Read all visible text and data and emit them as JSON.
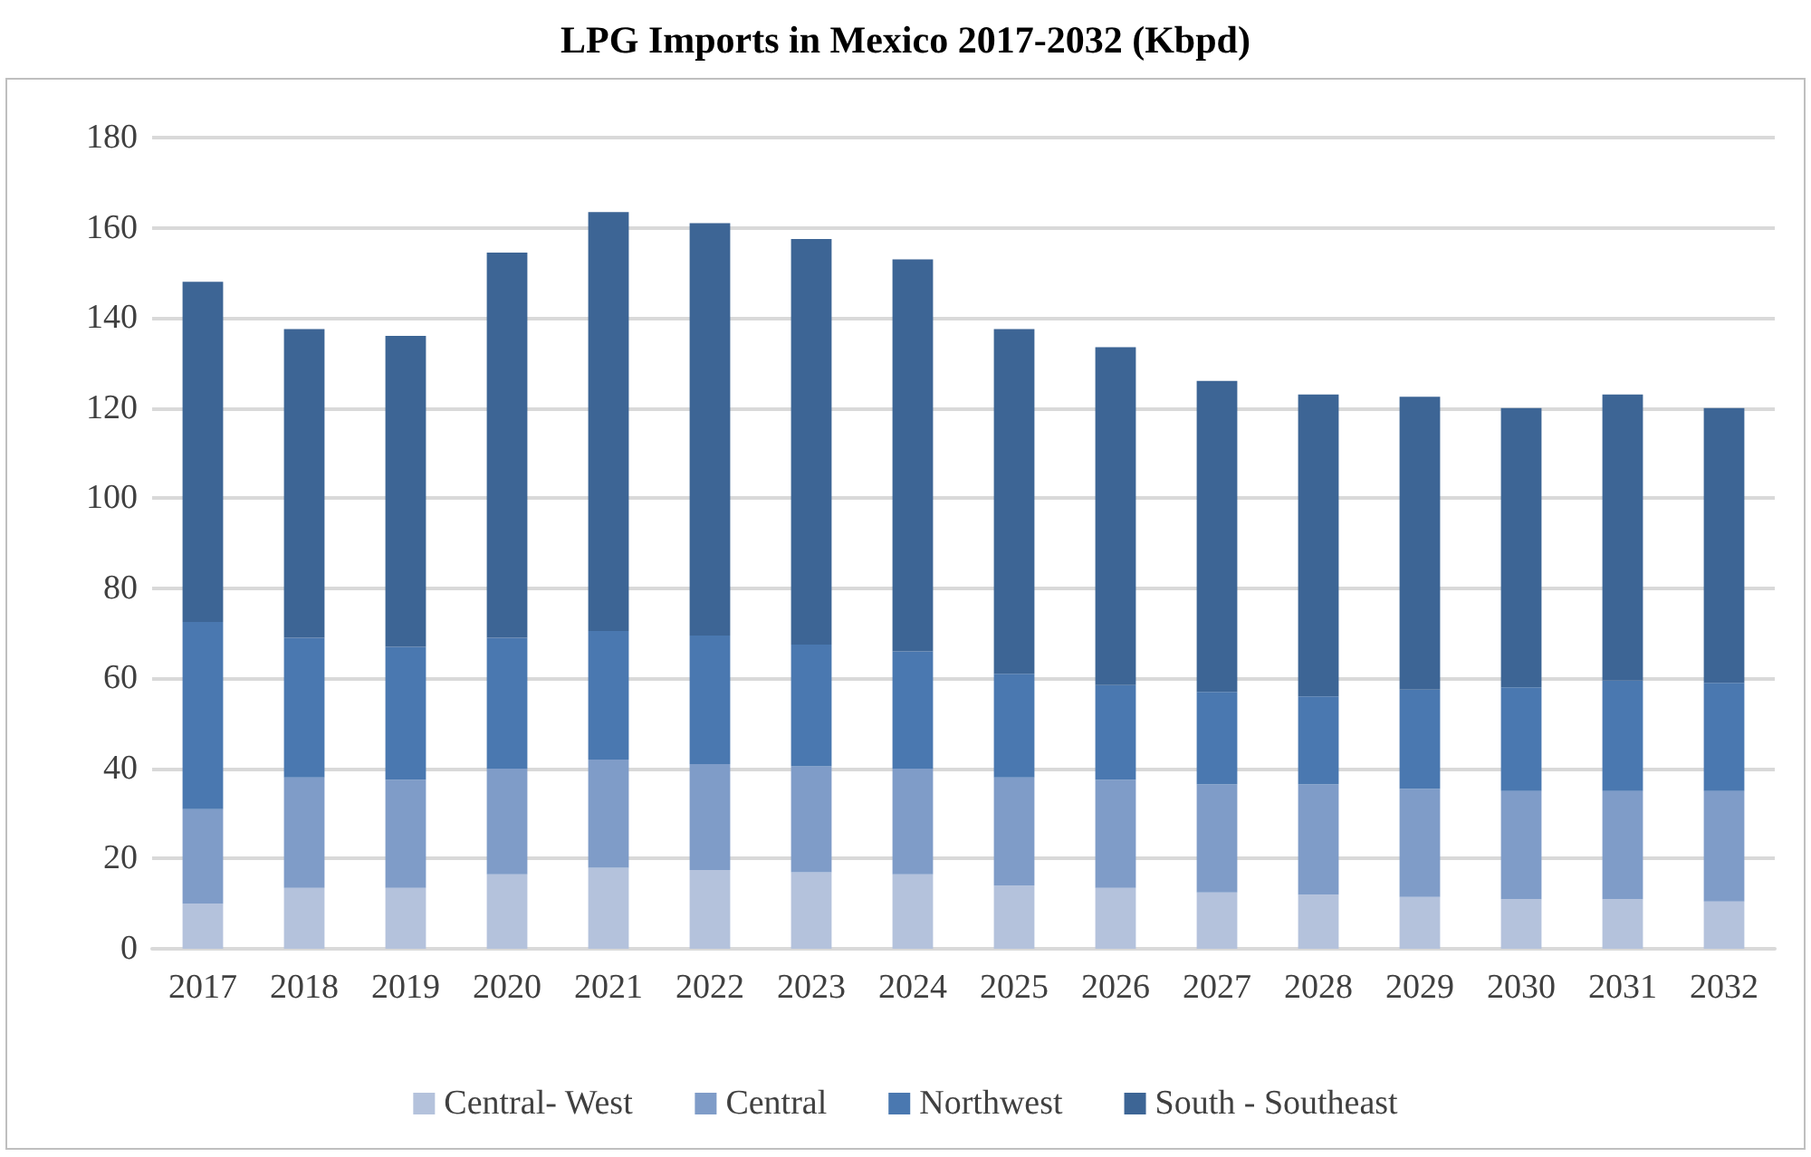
{
  "chart_data": {
    "type": "bar",
    "title": "LPG Imports in Mexico 2017-2032 (Kbpd)",
    "stacked": true,
    "categories": [
      "2017",
      "2018",
      "2019",
      "2020",
      "2021",
      "2022",
      "2023",
      "2024",
      "2025",
      "2026",
      "2027",
      "2028",
      "2029",
      "2030",
      "2031",
      "2032"
    ],
    "series": [
      {
        "name": "Central- West",
        "color": "#b4c2dc",
        "values": [
          10,
          13.5,
          13.5,
          16.5,
          18,
          17.5,
          17,
          16.5,
          14,
          13.5,
          12.5,
          12,
          11.5,
          11,
          11,
          10.5
        ]
      },
      {
        "name": "Central",
        "color": "#7f9cc8",
        "values": [
          21,
          24.5,
          24,
          23.5,
          24,
          23.5,
          23.5,
          23.5,
          24,
          24,
          24,
          24.5,
          24,
          24,
          24,
          24.5
        ]
      },
      {
        "name": "Northwest",
        "color": "#4a78b0",
        "values": [
          41.5,
          31,
          29.5,
          29,
          28.5,
          28.5,
          27,
          26,
          23,
          21,
          20.5,
          19.5,
          22,
          23,
          24.5,
          24
        ]
      },
      {
        "name": "South - Southeast",
        "color": "#3d6595",
        "values": [
          75.5,
          68.5,
          69,
          85.5,
          93,
          91.5,
          90,
          87,
          76.5,
          75,
          69,
          67,
          65,
          62,
          63.5,
          61
        ]
      }
    ],
    "ylim": [
      0,
      180
    ],
    "yticks": [
      0,
      20,
      40,
      60,
      80,
      100,
      120,
      140,
      160,
      180
    ],
    "grid": "y",
    "legend": "bottom"
  }
}
